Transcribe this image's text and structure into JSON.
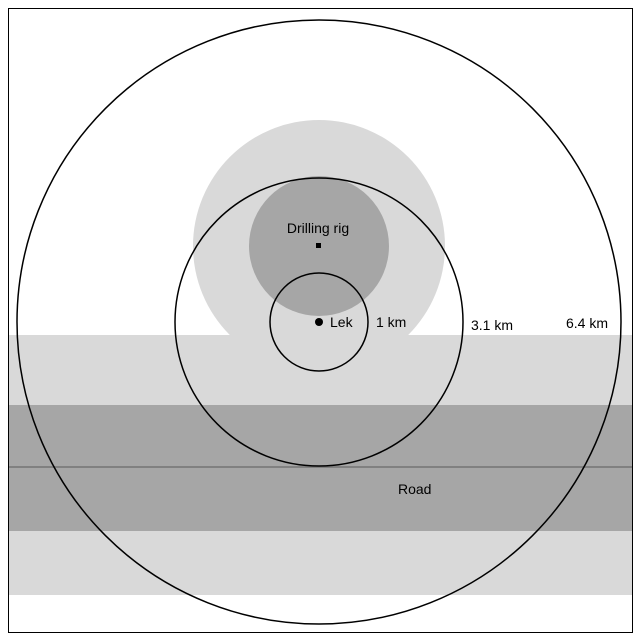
{
  "labels": {
    "rig": "Drilling rig",
    "lek": "Lek",
    "road": "Road",
    "ring_small": "1 km",
    "ring_mid": "3.1 km",
    "ring_large": "6.4 km"
  },
  "colors": {
    "background": "#ffffff",
    "frame": "#000000",
    "light_zone": "#d9d9d9",
    "dark_zone": "#a6a6a6",
    "road_line": "#808080",
    "rings": "#000000"
  }
}
